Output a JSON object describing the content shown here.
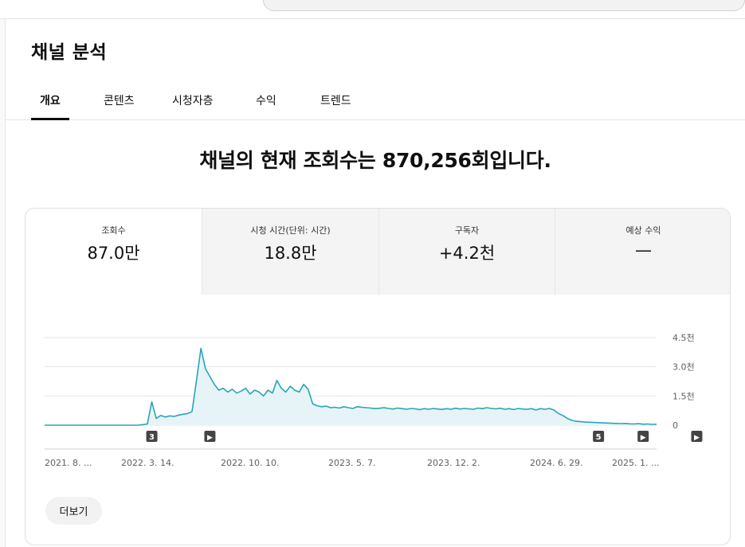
{
  "page": {
    "title": "채널 분석"
  },
  "tabs": [
    {
      "label": "개요",
      "active": true
    },
    {
      "label": "콘텐츠",
      "active": false
    },
    {
      "label": "시청자층",
      "active": false
    },
    {
      "label": "수익",
      "active": false
    },
    {
      "label": "트렌드",
      "active": false
    }
  ],
  "headline": "채널의 현재 조회수는 870,256회입니다.",
  "metrics": [
    {
      "label": "조회수",
      "value": "87.0만",
      "selected": true
    },
    {
      "label": "시청 시간(단위: 시간)",
      "value": "18.8만",
      "selected": false
    },
    {
      "label": "구독자",
      "value": "+4.2천",
      "selected": false
    },
    {
      "label": "예상 수익",
      "value": "—",
      "selected": false
    }
  ],
  "chart_data": {
    "type": "area",
    "title": "",
    "xlabel": "",
    "ylabel": "",
    "y_ticks": [
      {
        "value": 0,
        "label": "0"
      },
      {
        "value": 1500,
        "label": "1.5천"
      },
      {
        "value": 3000,
        "label": "3.0천"
      },
      {
        "value": 4500,
        "label": "4.5천"
      }
    ],
    "ylim": [
      0,
      4500
    ],
    "x_ticks": [
      "2021. 8. ...",
      "2022. 3. 14.",
      "2022. 10. 10.",
      "2023. 5. 7.",
      "2023. 12. 2.",
      "2024. 6. 29.",
      "2025. 1. ..."
    ],
    "series": [
      {
        "values": [
          0,
          0,
          0,
          0,
          0,
          0,
          0,
          0,
          0,
          0,
          0,
          0,
          0,
          0,
          0,
          0,
          0,
          0,
          0,
          0,
          0,
          0,
          30,
          60,
          1200,
          350,
          500,
          420,
          480,
          450,
          520,
          560,
          600,
          700,
          2300,
          3950,
          2900,
          2500,
          2100,
          1800,
          1900,
          1700,
          1850,
          1650,
          1750,
          1900,
          1600,
          1800,
          1700,
          1500,
          1800,
          1650,
          2300,
          1900,
          1700,
          2000,
          1800,
          1700,
          2100,
          1850,
          1100,
          1000,
          950,
          980,
          900,
          920,
          880,
          950,
          900,
          860,
          950,
          920,
          900,
          880,
          850,
          870,
          900,
          860,
          830,
          880,
          850,
          820,
          860,
          840,
          800,
          850,
          820,
          860,
          830,
          810,
          850,
          820,
          870,
          830,
          860,
          840,
          820,
          880,
          850,
          900,
          860,
          840,
          870,
          820,
          850,
          800,
          860,
          830,
          820,
          850,
          780,
          850,
          820,
          860,
          780,
          600,
          500,
          350,
          250,
          200,
          180,
          160,
          150,
          140,
          130,
          120,
          110,
          100,
          90,
          80,
          90,
          70,
          60,
          80,
          50,
          60,
          40,
          50
        ]
      }
    ],
    "markers": [
      {
        "label": "3",
        "index": 24
      },
      {
        "label": "▶",
        "index": 37
      },
      {
        "label": "5",
        "index": 124
      },
      {
        "label": "▶",
        "index": 134
      },
      {
        "label": "▶",
        "index": 146
      }
    ],
    "colors": {
      "line": "#2aa4b8",
      "fill": "#e6f4f7",
      "grid": "#e5e5e5",
      "tick": "#606060"
    }
  },
  "more_button": {
    "label": "더보기"
  }
}
